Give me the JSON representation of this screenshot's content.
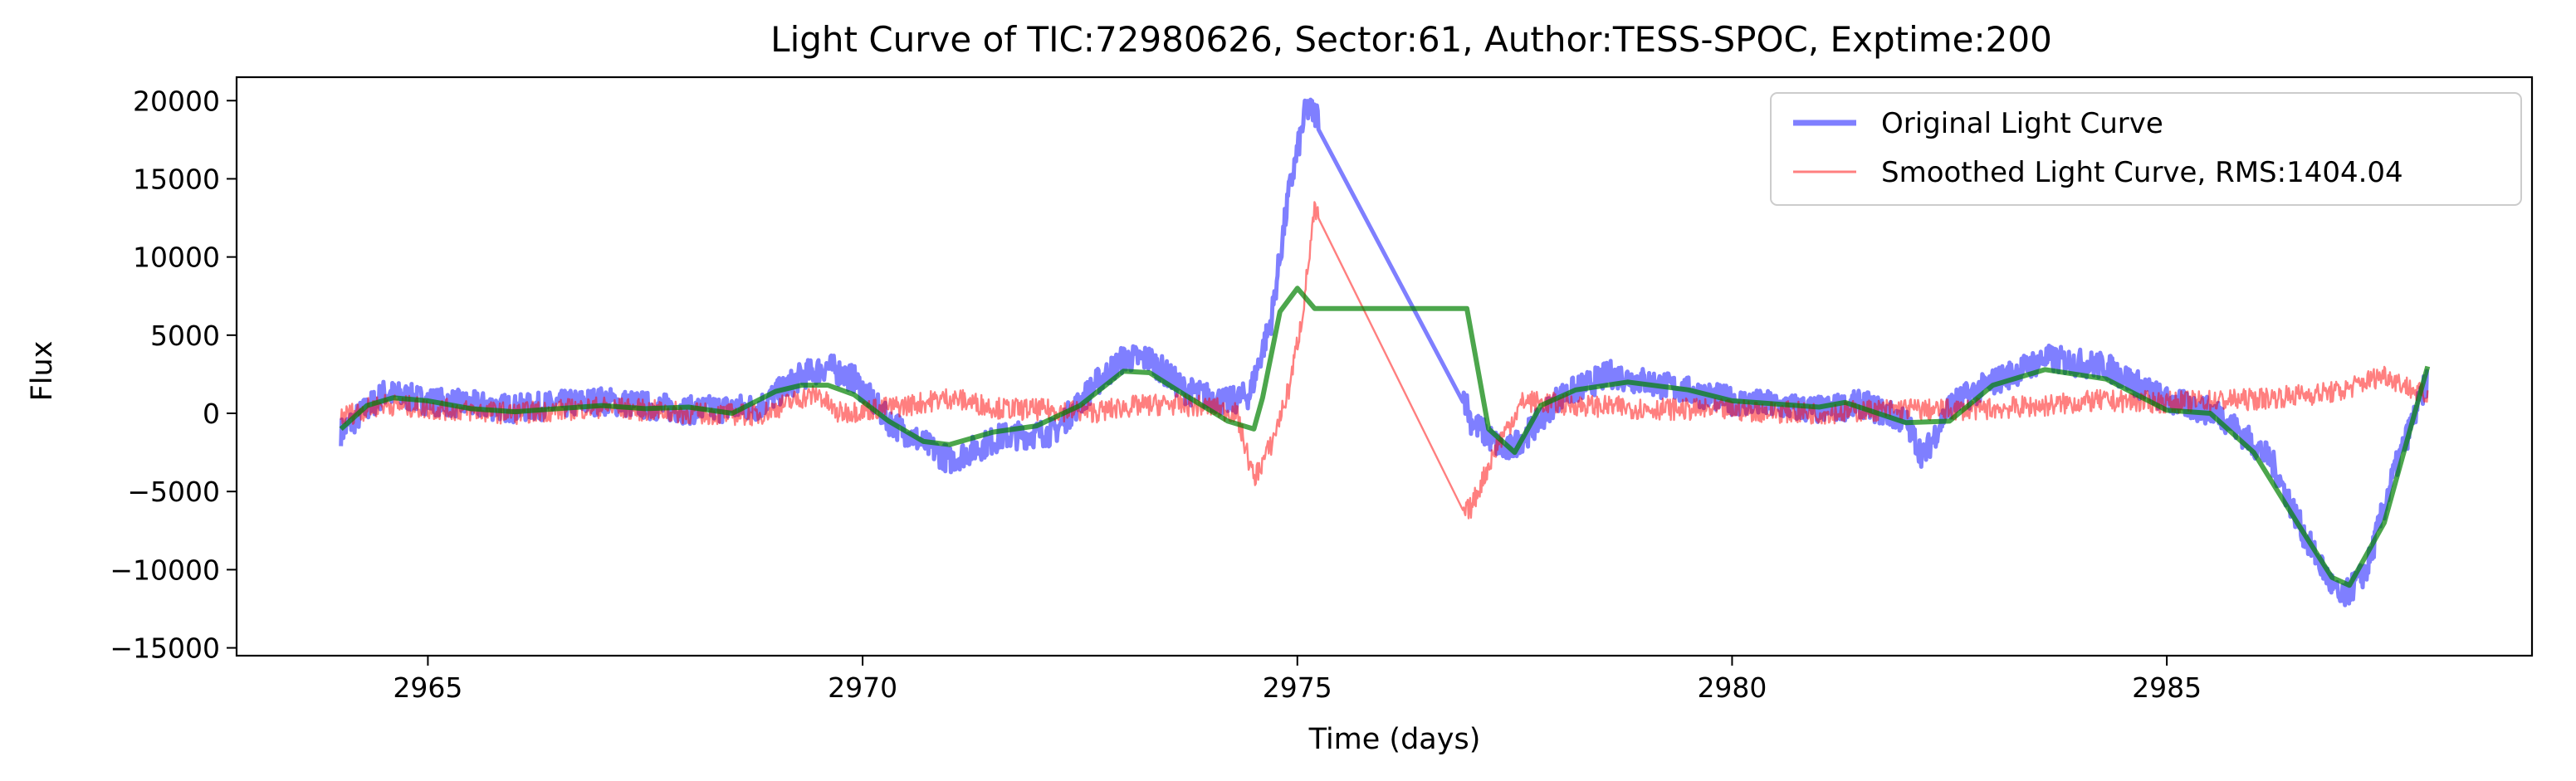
{
  "chart_data": {
    "type": "line",
    "title": "Light Curve of TIC:72980626, Sector:61, Author:TESS-SPOC, Exptime:200",
    "xlabel": "Time (days)",
    "ylabel": "Flux",
    "xlim": [
      2962.8,
      2989.2
    ],
    "ylim": [
      -15500,
      21500
    ],
    "x_ticks": [
      2965,
      2970,
      2975,
      2980,
      2985
    ],
    "y_ticks": [
      -15000,
      -10000,
      -5000,
      0,
      5000,
      10000,
      15000,
      20000
    ],
    "x_tick_labels": [
      "2965",
      "2970",
      "2975",
      "2980",
      "2985"
    ],
    "y_tick_labels": [
      "−15000",
      "−10000",
      "−5000",
      "0",
      "5000",
      "10000",
      "15000",
      "20000"
    ],
    "grid": false,
    "legend_position": "top-right",
    "series": [
      {
        "name": "Original Light Curve",
        "color": "#0000ff",
        "opacity": 0.5,
        "style": "thick",
        "noise": 900,
        "x": [
          2964.0,
          2964.5,
          2965.0,
          2966.0,
          2967.0,
          2968.0,
          2968.8,
          2969.3,
          2969.6,
          2969.9,
          2970.3,
          2971.0,
          2971.6,
          2972.2,
          2972.7,
          2973.0,
          2973.3,
          2973.7,
          2974.2,
          2974.45,
          2974.7,
          2974.9,
          2975.1,
          2975.25,
          2976.0,
          2976.9,
          2977.0,
          2977.4,
          2977.7,
          2978.0,
          2978.6,
          2979.2,
          2980.0,
          2981.0,
          2981.5,
          2982.0,
          2982.2,
          2982.5,
          2983.0,
          2983.6,
          2984.3,
          2985.0,
          2985.6,
          2986.2,
          2986.6,
          2987.0,
          2987.3,
          2987.6,
          2988.0
        ],
        "y": [
          -1200,
          1300,
          800,
          300,
          800,
          200,
          400,
          2400,
          3000,
          2200,
          -500,
          -3000,
          -1500,
          -1200,
          2000,
          3500,
          3500,
          1500,
          700,
          1200,
          6000,
          14000,
          19500,
          19000,
          10000,
          1500,
          -500,
          -2500,
          -1000,
          1000,
          2500,
          1800,
          800,
          200,
          600,
          -500,
          -2800,
          500,
          2000,
          3500,
          3000,
          800,
          0,
          -3000,
          -8000,
          -12000,
          -10000,
          -4000,
          2200
        ]
      },
      {
        "name": "Smoothed Light Curve, RMS:1404.04",
        "color": "#ff0000",
        "opacity": 0.5,
        "style": "thin",
        "noise": 700,
        "x": [
          2964.0,
          2964.5,
          2965.0,
          2966.0,
          2967.0,
          2968.0,
          2968.8,
          2969.3,
          2969.5,
          2969.7,
          2970.0,
          2970.5,
          2971.0,
          2971.6,
          2972.2,
          2972.7,
          2973.0,
          2973.5,
          2974.0,
          2974.3,
          2974.5,
          2974.7,
          2974.9,
          2975.05,
          2975.2,
          2976.0,
          2976.9,
          2977.0,
          2977.3,
          2977.6,
          2978.0,
          2979.0,
          2980.0,
          2981.0,
          2982.0,
          2982.3,
          2983.0,
          2983.6,
          2984.2,
          2985.0,
          2986.0,
          2987.0,
          2987.5,
          2988.0
        ],
        "y": [
          -200,
          600,
          300,
          0,
          400,
          0,
          -100,
          1000,
          1200,
          0,
          200,
          500,
          1000,
          300,
          200,
          100,
          400,
          600,
          400,
          0,
          -4200,
          -2000,
          1500,
          6000,
          13000,
          3000,
          -6500,
          -6000,
          -2000,
          800,
          600,
          300,
          200,
          0,
          300,
          200,
          300,
          500,
          800,
          700,
          900,
          1400,
          2500,
          1000
        ]
      },
      {
        "name": "",
        "color": "#008000",
        "opacity": 0.7,
        "style": "trend",
        "noise": 0,
        "x": [
          2964.0,
          2964.3,
          2964.6,
          2965.0,
          2965.5,
          2966.0,
          2967.0,
          2967.5,
          2968.0,
          2968.5,
          2969.0,
          2969.3,
          2969.6,
          2969.9,
          2970.3,
          2970.7,
          2971.0,
          2971.5,
          2972.0,
          2972.5,
          2973.0,
          2973.3,
          2973.7,
          2974.2,
          2974.5,
          2974.6,
          2974.8,
          2975.0,
          2975.2,
          2976.0,
          2976.95,
          2977.2,
          2977.5,
          2977.8,
          2978.2,
          2978.8,
          2979.5,
          2980.0,
          2981.0,
          2981.3,
          2982.0,
          2982.5,
          2983.0,
          2983.6,
          2984.3,
          2985.0,
          2985.5,
          2986.0,
          2986.5,
          2986.9,
          2987.1,
          2987.5,
          2988.0
        ],
        "y": [
          -1000,
          500,
          1000,
          800,
          300,
          100,
          500,
          300,
          400,
          0,
          1400,
          1800,
          1800,
          1200,
          -500,
          -1800,
          -2000,
          -1200,
          -800,
          500,
          2700,
          2600,
          1200,
          -500,
          -1000,
          1000,
          6500,
          8000,
          6700,
          6700,
          6700,
          -1000,
          -2500,
          500,
          1500,
          2000,
          1500,
          800,
          400,
          700,
          -600,
          -500,
          1800,
          2800,
          2200,
          200,
          0,
          -2500,
          -7000,
          -10500,
          -11000,
          -7000,
          3000
        ]
      }
    ]
  }
}
